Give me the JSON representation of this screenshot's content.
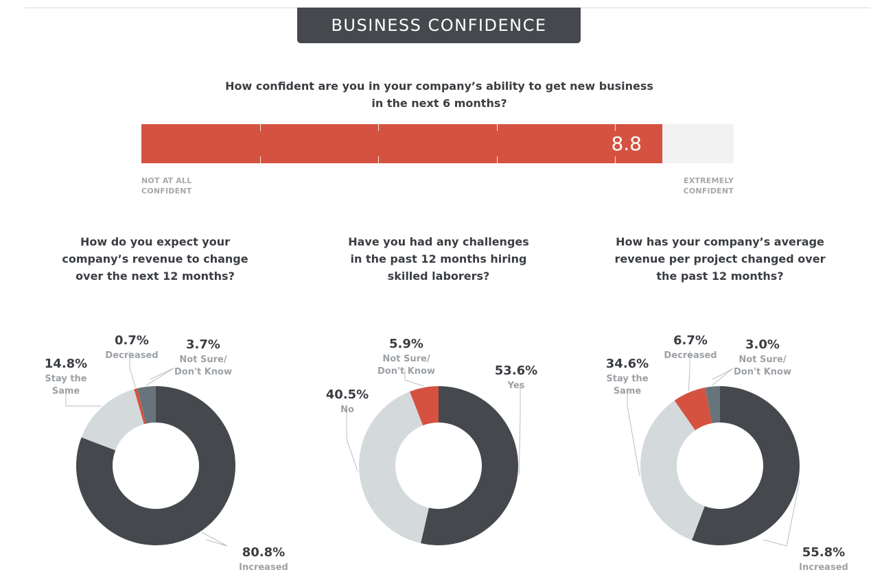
{
  "header": {
    "title": "BUSINESS CONFIDENCE"
  },
  "confidence": {
    "question_line1": "How confident are you in your company’s ability to get new business",
    "question_line2": "in the next 6 months?",
    "value": 8.8,
    "value_label": "8.8",
    "scale_max": 10,
    "min_label_1": "NOT AT ALL",
    "min_label_2": "CONFIDENT",
    "max_label_1": "EXTREMELY",
    "max_label_2": "CONFIDENT"
  },
  "colors": {
    "accent_red": "#d55241",
    "dark_slate": "#45494d",
    "light_gray": "#d4d9dc",
    "steel": "#68747c",
    "track": "#f2f2f2"
  },
  "chart_data": [
    {
      "type": "pie",
      "title_lines": [
        "How do you expect your",
        "company’s revenue to change",
        "over the next 12 months?"
      ],
      "slices": [
        {
          "label": "Increased",
          "value": 80.8,
          "pct": "80.8%",
          "label_lines": [
            "Increased"
          ],
          "color": "#45494d"
        },
        {
          "label": "Stay the Same",
          "value": 14.8,
          "pct": "14.8%",
          "label_lines": [
            "Stay the",
            "Same"
          ],
          "color": "#d4d9dc"
        },
        {
          "label": "Decreased",
          "value": 0.7,
          "pct": "0.7%",
          "label_lines": [
            "Decreased"
          ],
          "color": "#d55241"
        },
        {
          "label": "Not Sure/ Don't Know",
          "value": 3.7,
          "pct": "3.7%",
          "label_lines": [
            "Not Sure/",
            "Don't Know"
          ],
          "color": "#68747c"
        }
      ]
    },
    {
      "type": "pie",
      "title_lines": [
        "Have you had any challenges",
        "in the past 12 months hiring",
        "skilled laborers?"
      ],
      "slices": [
        {
          "label": "Yes",
          "value": 53.6,
          "pct": "53.6%",
          "label_lines": [
            "Yes"
          ],
          "color": "#45494d"
        },
        {
          "label": "No",
          "value": 40.5,
          "pct": "40.5%",
          "label_lines": [
            "No"
          ],
          "color": "#d4d9dc"
        },
        {
          "label": "Not Sure/ Don't Know",
          "value": 5.9,
          "pct": "5.9%",
          "label_lines": [
            "Not Sure/",
            "Don't Know"
          ],
          "color": "#d55241"
        }
      ]
    },
    {
      "type": "pie",
      "title_lines": [
        "How has your company’s average",
        "revenue per project changed over",
        "the past 12 months?"
      ],
      "slices": [
        {
          "label": "Increased",
          "value": 55.8,
          "pct": "55.8%",
          "label_lines": [
            "Increased"
          ],
          "color": "#45494d"
        },
        {
          "label": "Stay the Same",
          "value": 34.6,
          "pct": "34.6%",
          "label_lines": [
            "Stay the",
            "Same"
          ],
          "color": "#d4d9dc"
        },
        {
          "label": "Decreased",
          "value": 6.7,
          "pct": "6.7%",
          "label_lines": [
            "Decreased"
          ],
          "color": "#d55241"
        },
        {
          "label": "Not Sure/ Don't Know",
          "value": 3.0,
          "pct": "3.0%",
          "label_lines": [
            "Not Sure/",
            "Don't Know"
          ],
          "color": "#68747c"
        }
      ]
    }
  ]
}
